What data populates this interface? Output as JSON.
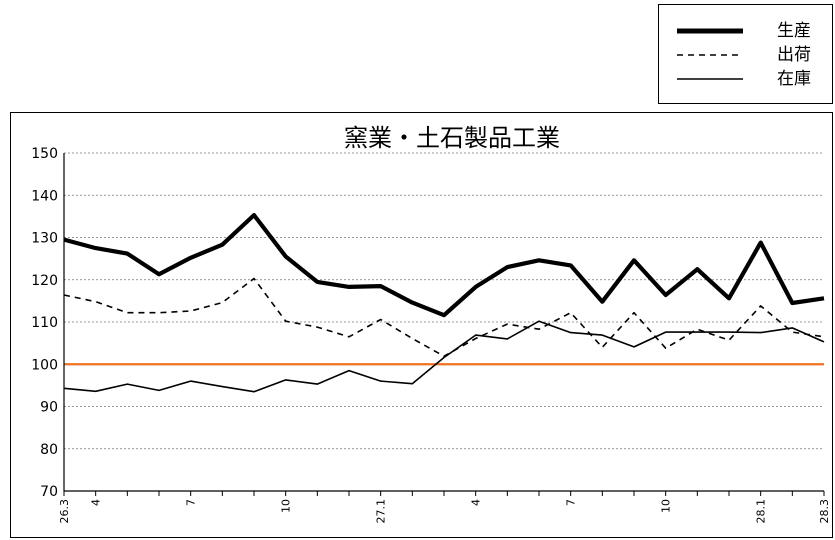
{
  "legend": {
    "items": [
      {
        "label": "生産",
        "style": "thick-solid"
      },
      {
        "label": "出荷",
        "style": "dashed"
      },
      {
        "label": "在庫",
        "style": "thin-solid"
      }
    ]
  },
  "chart_data": {
    "type": "line",
    "title": "窯業・土石製品工業",
    "xlabel": "",
    "ylabel": "",
    "ylim": [
      70,
      150
    ],
    "yticks": [
      70,
      80,
      90,
      100,
      110,
      120,
      130,
      140,
      150
    ],
    "grid": true,
    "legend_position": "top-right",
    "x": [
      "26.3",
      "4",
      "5",
      "6",
      "7",
      "8",
      "9",
      "10",
      "11",
      "12",
      "27.1",
      "2",
      "3",
      "4",
      "5",
      "6",
      "7",
      "8",
      "9",
      "10",
      "11",
      "12",
      "28.1",
      "2",
      "28.3"
    ],
    "xtick_labels": [
      "26.3",
      "4",
      "",
      "",
      "7",
      "",
      "",
      "10",
      "",
      "",
      "27.1",
      "",
      "",
      "4",
      "",
      "",
      "7",
      "",
      "",
      "10",
      "",
      "",
      "28.1",
      "",
      "28.3"
    ],
    "reference_line": {
      "y": 100,
      "color": "#f07020"
    },
    "series": [
      {
        "name": "生産",
        "style": "thick-solid",
        "color": "#000000",
        "values": [
          129.5,
          127.5,
          126.2,
          121.3,
          125.2,
          128.3,
          135.3,
          125.5,
          119.5,
          118.3,
          118.5,
          114.6,
          111.6,
          118.3,
          123.0,
          124.6,
          123.4,
          114.8,
          124.6,
          116.4,
          122.5,
          115.6,
          128.8,
          114.5,
          115.6
        ]
      },
      {
        "name": "出荷",
        "style": "dashed",
        "color": "#000000",
        "values": [
          116.4,
          114.8,
          112.2,
          112.2,
          112.6,
          114.6,
          120.3,
          110.2,
          108.8,
          106.5,
          110.6,
          106.1,
          101.9,
          106.1,
          109.5,
          108.3,
          112.2,
          104.0,
          112.2,
          103.8,
          108.3,
          105.7,
          113.8,
          107.6,
          106.5
        ]
      },
      {
        "name": "在庫",
        "style": "thin-solid",
        "color": "#000000",
        "values": [
          94.3,
          93.6,
          95.3,
          93.8,
          96.0,
          94.7,
          93.5,
          96.3,
          95.3,
          98.5,
          96.0,
          95.4,
          101.6,
          106.9,
          106.0,
          110.2,
          107.5,
          106.9,
          104.1,
          107.6,
          107.6,
          107.6,
          107.5,
          108.6,
          105.3
        ]
      }
    ]
  }
}
